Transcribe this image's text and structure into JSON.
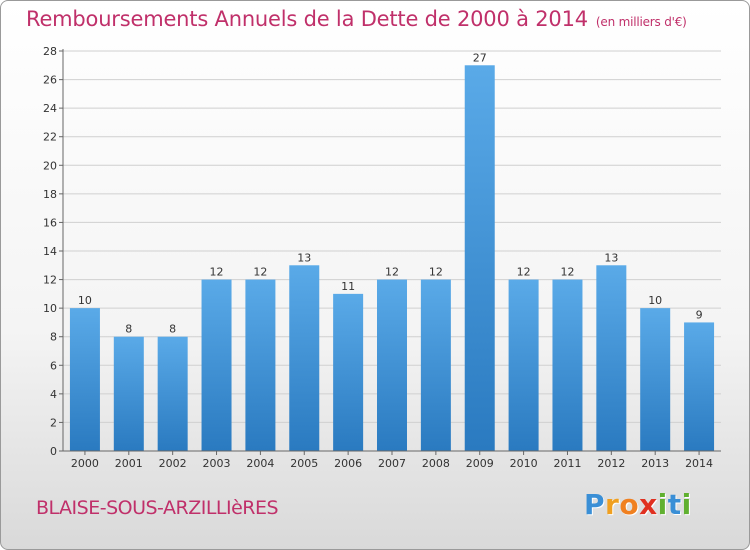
{
  "title": "Remboursements Annuels de la Dette de 2000 à 2014",
  "title_unit": "(en milliers d'€)",
  "commune": "BLAISE-SOUS-ARZILLIèRES",
  "brand": {
    "letters": [
      {
        "ch": "P",
        "color": "#3a8fd6"
      },
      {
        "ch": "r",
        "color": "#f0a020"
      },
      {
        "ch": "o",
        "color": "#f08020"
      },
      {
        "ch": "x",
        "color": "#e03020"
      },
      {
        "ch": "i",
        "color": "#60b030"
      },
      {
        "ch": "t",
        "color": "#3a8fd6"
      },
      {
        "ch": "i",
        "color": "#60b030"
      }
    ]
  },
  "colors": {
    "accent": "#c0306a",
    "bar_top": "#5aaae8",
    "bar_bottom": "#2a7ac0",
    "grid": "#d0d0d0",
    "axis_text": "#333333"
  },
  "chart_data": {
    "type": "bar",
    "categories": [
      "2000",
      "2001",
      "2002",
      "2003",
      "2004",
      "2005",
      "2006",
      "2007",
      "2008",
      "2009",
      "2010",
      "2011",
      "2012",
      "2013",
      "2014"
    ],
    "values": [
      10,
      8,
      8,
      12,
      12,
      13,
      11,
      12,
      12,
      27,
      12,
      12,
      13,
      10,
      9
    ],
    "ylim": [
      0,
      28
    ],
    "yticks": [
      0,
      2,
      4,
      6,
      8,
      10,
      12,
      14,
      16,
      18,
      20,
      22,
      24,
      26,
      28
    ],
    "grid": true
  }
}
